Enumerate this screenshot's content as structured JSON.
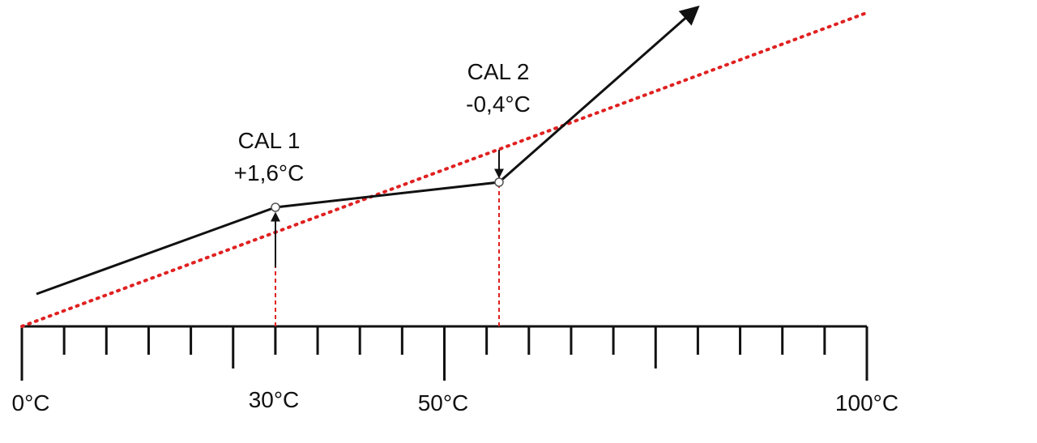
{
  "calibration_points": [
    {
      "name": "CAL 1",
      "offset": "+1,6°C"
    },
    {
      "name": "CAL 2",
      "offset": "-0,4°C"
    }
  ],
  "axis_labels": [
    "0°C",
    "30°C",
    "50°C",
    "100°C"
  ]
}
